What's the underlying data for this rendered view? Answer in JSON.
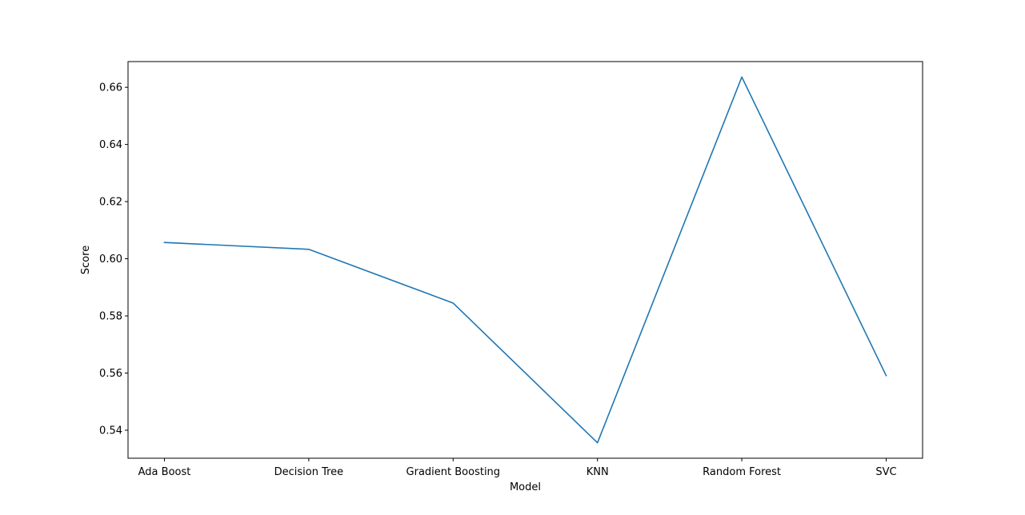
{
  "chart_data": {
    "type": "line",
    "categories": [
      "Ada Boost",
      "Decision Tree",
      "Gradient Boosting",
      "KNN",
      "Random Forest",
      "SVC"
    ],
    "series": [
      {
        "values": [
          0.6057,
          0.6033,
          0.5845,
          0.5356,
          0.6636,
          0.5591
        ],
        "color": "#1f77b4"
      }
    ],
    "xlabel": "Model",
    "ylabel": "Score",
    "ylim": [
      0.5302,
      0.669
    ],
    "yticks": [
      0.54,
      0.56,
      0.58,
      0.6,
      0.62,
      0.64,
      0.66
    ],
    "ytick_labels": [
      "0.54",
      "0.56",
      "0.58",
      "0.60",
      "0.62",
      "0.64",
      "0.66"
    ],
    "grid": false,
    "legend": "none"
  }
}
